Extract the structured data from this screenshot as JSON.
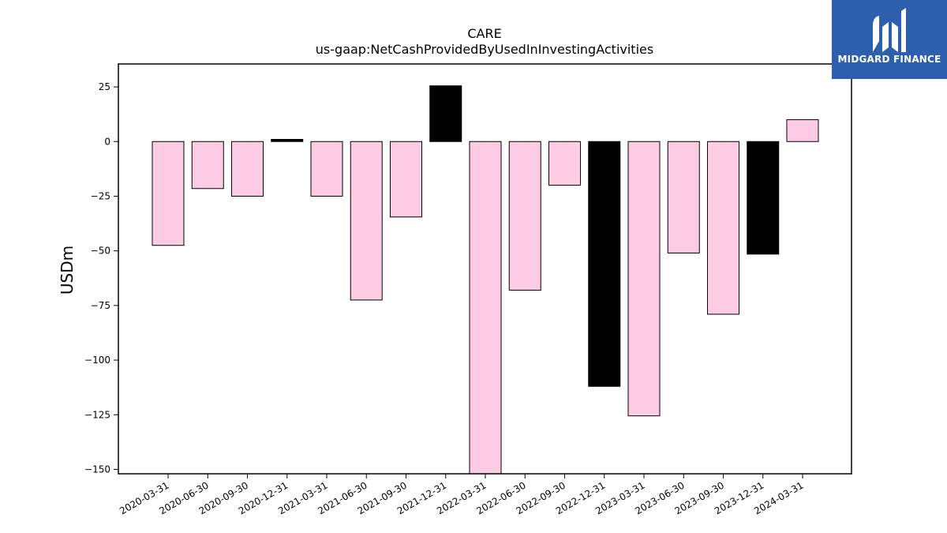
{
  "brand": {
    "name": "MIDGARD FINANCE",
    "bg_color": "#2d5fac"
  },
  "colors": {
    "negative_fill": "#fccbe4",
    "highlight_fill": "#000000",
    "bar_edge": "#000000"
  },
  "chart_data": {
    "type": "bar",
    "title": "CARE",
    "subtitle": "us-gaap:NetCashProvidedByUsedInInvestingActivities",
    "xlabel": "",
    "ylabel": "USDm",
    "ylim": [
      -152,
      35.5
    ],
    "yticks": [
      25,
      0,
      -25,
      -50,
      -75,
      -100,
      -125,
      -150
    ],
    "grid": false,
    "categories": [
      "2020-03-31",
      "2020-06-30",
      "2020-09-30",
      "2020-12-31",
      "2021-03-31",
      "2021-06-30",
      "2021-09-30",
      "2021-12-31",
      "2022-03-31",
      "2022-06-30",
      "2022-09-30",
      "2022-12-31",
      "2023-03-31",
      "2023-06-30",
      "2023-09-30",
      "2023-12-31",
      "2024-03-31"
    ],
    "values": [
      -47.5,
      -21.5,
      -25,
      1,
      -25,
      -72.5,
      -34.5,
      25.5,
      -152,
      -68,
      -20,
      -112,
      -125.5,
      -51,
      -79,
      -51.5,
      10
    ],
    "highlight": [
      false,
      false,
      false,
      true,
      false,
      false,
      false,
      true,
      false,
      false,
      false,
      true,
      false,
      false,
      false,
      true,
      false
    ]
  }
}
